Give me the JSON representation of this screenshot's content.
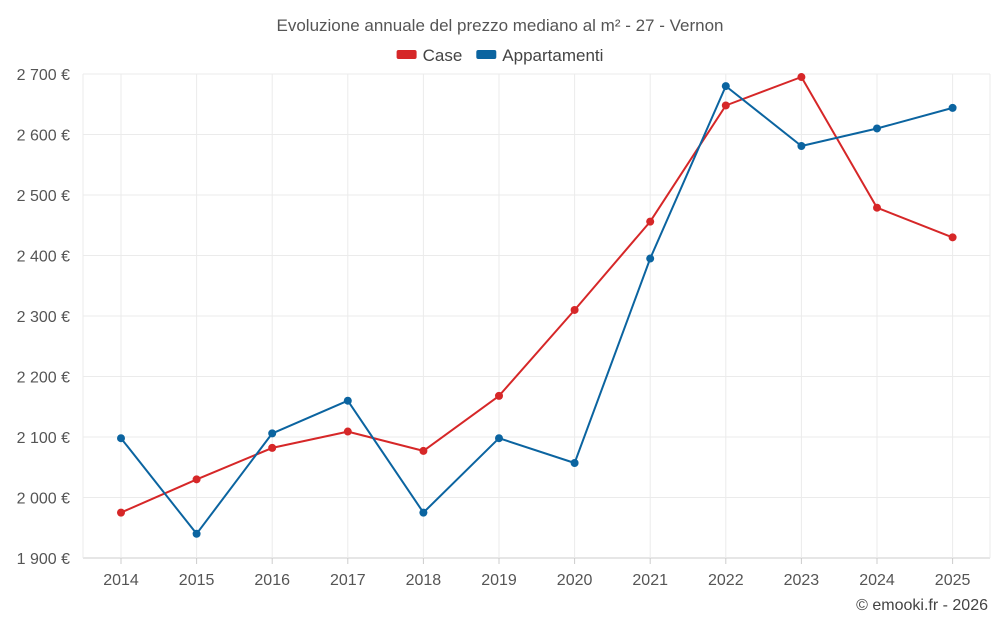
{
  "chart_data": {
    "type": "line",
    "title": "Evoluzione annuale del prezzo mediano al m² - 27 - Vernon",
    "categories": [
      "2014",
      "2015",
      "2016",
      "2017",
      "2018",
      "2019",
      "2020",
      "2021",
      "2022",
      "2023",
      "2024",
      "2025"
    ],
    "series": [
      {
        "name": "Case",
        "color": "#d62728",
        "values": [
          1975,
          2030,
          2082,
          2109,
          2077,
          2168,
          2310,
          2456,
          2648,
          2695,
          2479,
          2430
        ]
      },
      {
        "name": "Appartamenti",
        "color": "#0b64a0",
        "values": [
          2098,
          1940,
          2106,
          2160,
          1975,
          2098,
          2057,
          2395,
          2680,
          2581,
          2610,
          2644
        ]
      }
    ],
    "ylim": [
      1900,
      2700
    ],
    "yticks": [
      1900,
      2000,
      2100,
      2200,
      2300,
      2400,
      2500,
      2600,
      2700
    ],
    "ytick_labels": [
      "1 900 €",
      "2 000 €",
      "2 100 €",
      "2 200 €",
      "2 300 €",
      "2 400 €",
      "2 500 €",
      "2 600 €",
      "2 700 €"
    ],
    "xlabel": "",
    "ylabel": "",
    "grid": true,
    "legend": "top-center"
  },
  "credit": "© emooki.fr - 2026"
}
